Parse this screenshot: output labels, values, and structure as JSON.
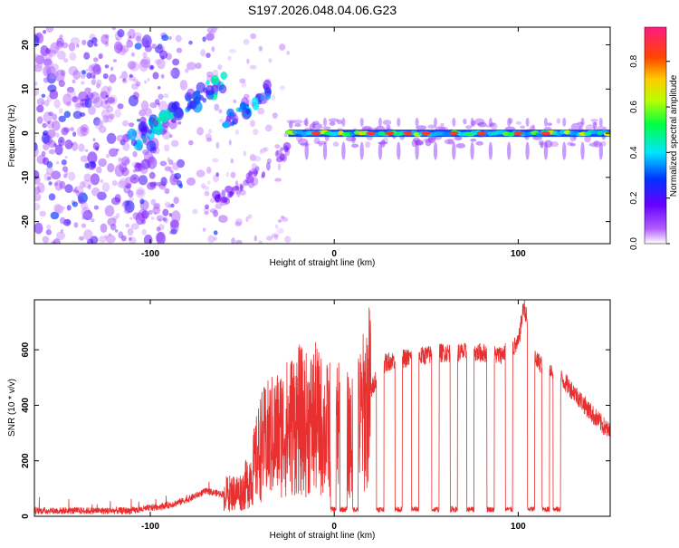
{
  "title": "S197.2026.048.04.06.G23",
  "chart_data": [
    {
      "type": "heatmap",
      "xlabel": "Height of straight line (km)",
      "ylabel": "Frequency (Hz)",
      "xlim": [
        -163,
        150
      ],
      "ylim": [
        -25,
        24
      ],
      "xticks": [
        -100,
        0,
        100
      ],
      "yticks": [
        -20,
        -10,
        0,
        10,
        20
      ],
      "colorbar": {
        "label": "Normalized spectral amplitude",
        "range": [
          0.0,
          0.95
        ],
        "ticks": [
          0.0,
          0.2,
          0.4,
          0.6,
          0.8
        ],
        "tick_labels": [
          "0.0",
          "0.2",
          "0.4",
          "0.6",
          "0.8"
        ]
      },
      "features": [
        {
          "name": "scatter-region",
          "x_range": [
            -163,
            -60
          ],
          "frequency_range": [
            -25,
            24
          ],
          "level": 0.2
        },
        {
          "name": "rising-streak-1",
          "x_start": -110,
          "x_end": -60,
          "f_start": -2,
          "f_end": 12,
          "level": 0.4
        },
        {
          "name": "rising-streak-2",
          "x_start": -60,
          "x_end": -35,
          "f_start": 2,
          "f_end": 10,
          "level": 0.35
        },
        {
          "name": "carrier-line",
          "x_start": -25,
          "x_end": 150,
          "frequency": 0,
          "level": 0.75
        }
      ]
    },
    {
      "type": "line",
      "xlabel": "Height of straight line (km)",
      "ylabel": "SNR (10 * v/v)",
      "xlim": [
        -163,
        150
      ],
      "ylim": [
        0,
        780
      ],
      "xticks": [
        -100,
        0,
        100
      ],
      "yticks": [
        0,
        200,
        400,
        600
      ],
      "color": "#e83030",
      "keypoints": {
        "x": [
          -163,
          -110,
          -90,
          -80,
          -70,
          -60,
          -50,
          -45,
          -40,
          -35,
          -30,
          -25,
          -20,
          -15,
          -10,
          -5,
          0,
          5,
          10,
          15,
          20,
          25,
          30,
          40,
          50,
          60,
          70,
          80,
          90,
          100,
          103,
          110,
          120,
          130,
          140,
          150
        ],
        "y": [
          20,
          20,
          40,
          60,
          90,
          80,
          90,
          150,
          250,
          280,
          300,
          320,
          350,
          330,
          350,
          310,
          320,
          300,
          280,
          360,
          450,
          540,
          560,
          570,
          580,
          590,
          590,
          590,
          580,
          620,
          760,
          560,
          520,
          450,
          370,
          300
        ]
      },
      "dropouts": [
        {
          "x_start": -2,
          "x_end": 1
        },
        {
          "x_start": 3,
          "x_end": 7
        },
        {
          "x_start": 10,
          "x_end": 13
        },
        {
          "x_start": 23,
          "x_end": 27
        },
        {
          "x_start": 33,
          "x_end": 37
        },
        {
          "x_start": 42,
          "x_end": 46
        },
        {
          "x_start": 53,
          "x_end": 57
        },
        {
          "x_start": 63,
          "x_end": 67
        },
        {
          "x_start": 72,
          "x_end": 76
        },
        {
          "x_start": 83,
          "x_end": 87
        },
        {
          "x_start": 93,
          "x_end": 97
        },
        {
          "x_start": 105,
          "x_end": 109
        },
        {
          "x_start": 113,
          "x_end": 117
        },
        {
          "x_start": 119,
          "x_end": 123
        }
      ],
      "dropout_level": 25
    }
  ]
}
